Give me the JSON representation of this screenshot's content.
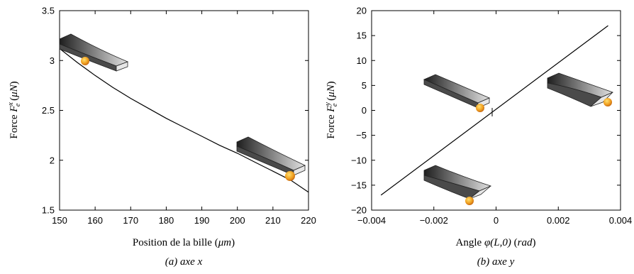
{
  "chart_data": [
    {
      "type": "line",
      "xlabel_text": "Position de la bille (",
      "xlabel_unit": "μm",
      "xlabel_close": ")",
      "ylabel_prefix": "Force ",
      "ylabel_var": "F",
      "ylabel_sup": "x",
      "ylabel_sub": "e",
      "ylabel_open": " (",
      "ylabel_unit": "μN",
      "ylabel_close": ")",
      "caption": "(a) axe x",
      "xlim": [
        150,
        220
      ],
      "ylim": [
        1.5,
        3.5
      ],
      "xticks": [
        150,
        160,
        170,
        180,
        190,
        200,
        210,
        220
      ],
      "yticks": [
        1.5,
        2,
        2.5,
        3,
        3.5
      ],
      "ytick_labels": [
        "1.5",
        "2",
        "2.5",
        "3",
        "3.5"
      ],
      "series": [
        {
          "x": [
            150,
            155,
            160,
            165,
            170,
            175,
            180,
            185,
            190,
            195,
            200,
            205,
            210,
            215,
            220
          ],
          "y": [
            3.12,
            2.98,
            2.85,
            2.73,
            2.62,
            2.52,
            2.42,
            2.33,
            2.24,
            2.15,
            2.07,
            1.98,
            1.89,
            1.8,
            1.68
          ]
        }
      ],
      "grid": false,
      "legend": "none"
    },
    {
      "type": "line",
      "xlabel_text": "Angle ",
      "xlabel_var": "φ(L,0)",
      "xlabel_open": " (",
      "xlabel_unit": "rad",
      "xlabel_close": ")",
      "ylabel_prefix": "Force ",
      "ylabel_var": "F",
      "ylabel_sup": "y",
      "ylabel_sub": "e",
      "ylabel_open": " (",
      "ylabel_unit": "μN",
      "ylabel_close": ")",
      "caption": "(b) axe y",
      "xlim": [
        -0.004,
        0.004
      ],
      "ylim": [
        -20,
        20
      ],
      "xticks": [
        -0.004,
        -0.002,
        0,
        0.002,
        0.004
      ],
      "xtick_labels": [
        "−0.004",
        "−0.002",
        "0",
        "0.002",
        "0.004"
      ],
      "yticks": [
        -20,
        -15,
        -10,
        -5,
        0,
        5,
        10,
        15,
        20
      ],
      "ytick_labels": [
        "−20",
        "−15",
        "−10",
        "−5",
        "0",
        "5",
        "10",
        "15",
        "20"
      ],
      "series": [
        {
          "x": [
            -0.0037,
            0.0036
          ],
          "y": [
            -17,
            17
          ]
        }
      ],
      "grid": false,
      "legend": "none"
    }
  ],
  "colors": {
    "line": "#000000",
    "beam_dark": "#2a2a2a",
    "beam_light": "#dcdcdc",
    "ball": "#f0a020"
  }
}
